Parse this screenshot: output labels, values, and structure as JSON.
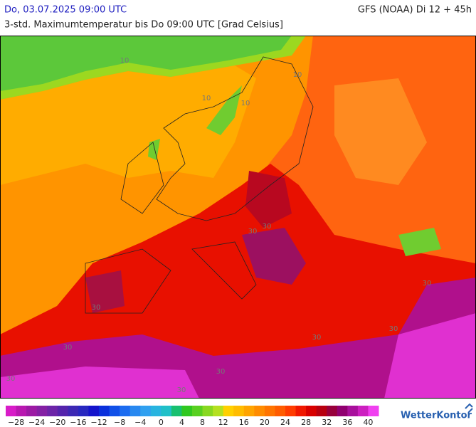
{
  "header": {
    "left": "Do, 03.07.2025 09:00 UTC",
    "right": "GFS (NOAA) Di 12 + 45h",
    "subtitle": "3-std. Maximumtemperatur bis Do 09:00 UTC [Grad Celsius]"
  },
  "map": {
    "contour_labels": [
      "10",
      "10",
      "10",
      "10",
      "30",
      "30",
      "30",
      "30",
      "30",
      "30",
      "30",
      "30",
      "30",
      "30"
    ]
  },
  "legend": {
    "range": [
      -30,
      42
    ],
    "colors": [
      "#d81cc8",
      "#b818b0",
      "#9c1aa4",
      "#8420a4",
      "#6c24a8",
      "#5424ac",
      "#3c28b4",
      "#2828c0",
      "#1414cc",
      "#0a30dc",
      "#1050e8",
      "#1c6cf0",
      "#2888f0",
      "#30a0f0",
      "#28b4e0",
      "#20c0c8",
      "#18c070",
      "#30c820",
      "#58d020",
      "#88d820",
      "#b4e020",
      "#ffd000",
      "#ffbc00",
      "#ffa400",
      "#ff8c00",
      "#ff7400",
      "#ff5c00",
      "#ff3c00",
      "#f01800",
      "#d80000",
      "#b80010",
      "#98003c",
      "#900070",
      "#a8109c",
      "#cc20c0",
      "#f040f0"
    ],
    "ticks": [
      {
        "value": -28,
        "label": "−28"
      },
      {
        "value": -24,
        "label": "−24"
      },
      {
        "value": -20,
        "label": "−20"
      },
      {
        "value": -16,
        "label": "−16"
      },
      {
        "value": -12,
        "label": "−12"
      },
      {
        "value": -8,
        "label": "−8"
      },
      {
        "value": -4,
        "label": "−4"
      },
      0,
      4,
      8,
      12,
      16,
      20,
      24,
      28,
      32,
      36,
      40
    ]
  },
  "brand": "WetterKontor"
}
